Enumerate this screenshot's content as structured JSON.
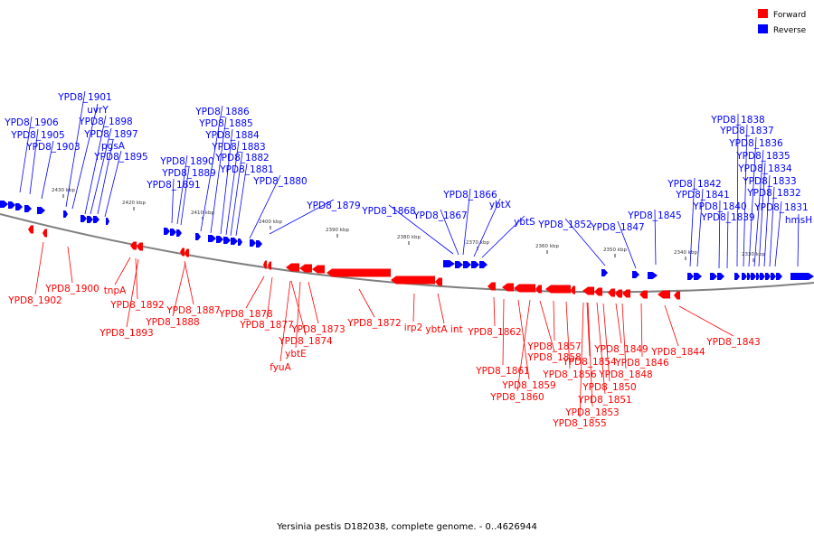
{
  "caption": "Yersinia pestis D182038, complete genome. - 0..4626944",
  "legend": {
    "forward": {
      "label": "Forward",
      "color": "#ff0000"
    },
    "reverse": {
      "label": "Reverse",
      "color": "#0000ff"
    }
  },
  "scale_ticks": [
    "2430 kbp",
    "2420 kbp",
    "2410 kbp",
    "2400 kbp",
    "2390 kbp",
    "2380 kbp",
    "2370 kbp",
    "2360 kbp",
    "2350 kbp",
    "2340 kbp",
    "2330 kbp"
  ],
  "reverse_labels": [
    "YPD8_1906",
    "YPD8_1905",
    "YPD8_1903",
    "YPD8_1901",
    "uvrY",
    "YPD8_1898",
    "YPD8_1897",
    "pgsA",
    "YPD8_1895",
    "YPD8_1891",
    "YPD8_1890",
    "YPD8_1889",
    "YPD8_1886",
    "YPD8_1885",
    "YPD8_1884",
    "YPD8_1883",
    "YPD8_1882",
    "YPD8_1881",
    "YPD8_1880",
    "YPD8_1879",
    "YPD8_1868",
    "YPD8_1867",
    "YPD8_1866",
    "ybtX",
    "ybtS",
    "YPD8_1852",
    "YPD8_1847",
    "YPD8_1845",
    "YPD8_1842",
    "YPD8_1841",
    "YPD8_1840",
    "YPD8_1839",
    "YPD8_1838",
    "YPD8_1837",
    "YPD8_1836",
    "YPD8_1835",
    "YPD8_1834",
    "YPD8_1833",
    "YPD8_1832",
    "YPD8_1831",
    "hmsH"
  ],
  "forward_labels": [
    "YPD8_1902",
    "YPD8_1900",
    "tnpA",
    "YPD8_1892",
    "YPD8_1893",
    "YPD8_1887",
    "YPD8_1888",
    "YPD8_1878",
    "YPD8_1877",
    "YPD8_1874",
    "ybtE",
    "fyuA",
    "YPD8_1873",
    "YPD8_1872",
    "irp2",
    "ybtA int",
    "YPD8_1862",
    "YPD8_1861",
    "YPD8_1859",
    "YPD8_1860",
    "YPD8_1858",
    "YPD8_1857",
    "YPD8_1856",
    "YPD8_1854",
    "YPD8_1853",
    "YPD8_1855",
    "YPD8_1851",
    "YPD8_1850",
    "YPD8_1849",
    "YPD8_1848",
    "YPD8_1846",
    "YPD8_1844",
    "YPD8_1843"
  ]
}
